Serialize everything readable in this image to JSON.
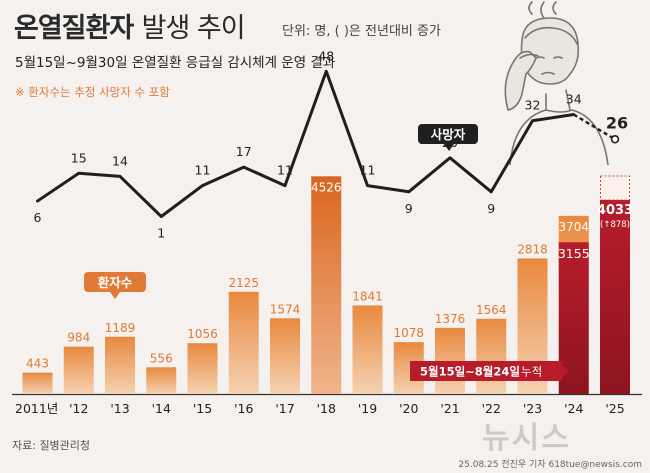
{
  "header": {
    "title_bold": "온열질환자",
    "title_light": "발생 추이",
    "unit": "단위: 명, ( )은 전년대비 증가",
    "subtitle": "5월15일~9월30일 온열질환 응급실 감시체계 운영 결과",
    "note": "※ 환자수는 추정 사망자 수 포함"
  },
  "footer": {
    "source": "자료: 질병관리청",
    "credit": "25.08.25 전진우 기자 618tue@newsis.com",
    "watermark": "뉴시스"
  },
  "chart_data": {
    "type": "bar",
    "categories": [
      "2011년",
      "'12",
      "'13",
      "'14",
      "'15",
      "'16",
      "'17",
      "'18",
      "'19",
      "'20",
      "'21",
      "'22",
      "'23",
      "'24",
      "'25"
    ],
    "series": [
      {
        "name": "환자수",
        "values": [
          443,
          984,
          1189,
          556,
          1056,
          2125,
          1574,
          4526,
          1841,
          1078,
          1376,
          1564,
          2818,
          3704,
          null
        ]
      },
      {
        "name": "5월15일~8월24일 누적",
        "values": [
          null,
          null,
          null,
          null,
          null,
          null,
          null,
          null,
          null,
          null,
          null,
          null,
          null,
          3155,
          4033
        ],
        "annotation": "(↑878)"
      },
      {
        "name": "사망자",
        "type": "line",
        "values": [
          6,
          15,
          14,
          1,
          11,
          17,
          11,
          48,
          11,
          9,
          20,
          9,
          32,
          34,
          26
        ]
      }
    ],
    "colors": {
      "patients": "#e8893e",
      "peak": "#d9651e",
      "cumulative": "#b81c2b",
      "deaths_line": "#1f1f1f",
      "label_orange": "#e07a37"
    },
    "labels": {
      "patients_tag": "환자수",
      "deaths_tag": "사망자",
      "cumulative_tag": "5월15일~8월24일",
      "cumulative_tag_suffix": "누적"
    },
    "xlabel": "",
    "ylabel": ""
  }
}
